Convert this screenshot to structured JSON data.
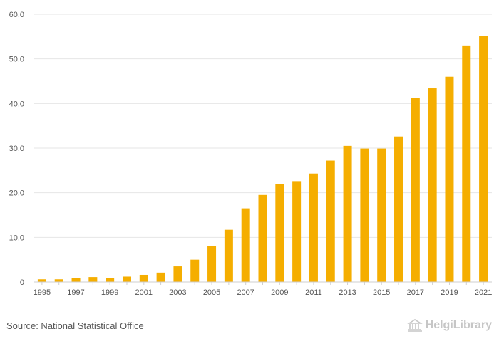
{
  "chart_data": {
    "type": "bar",
    "title": "",
    "xlabel": "",
    "ylabel": "",
    "ylim": [
      0,
      60
    ],
    "yticks": [
      "0",
      "10.0",
      "20.0",
      "30.0",
      "40.0",
      "50.0",
      "60.0"
    ],
    "ytick_values": [
      0,
      10,
      20,
      30,
      40,
      50,
      60
    ],
    "categories": [
      "1995",
      "1996",
      "1997",
      "1998",
      "1999",
      "2000",
      "2001",
      "2002",
      "2003",
      "2004",
      "2005",
      "2006",
      "2007",
      "2008",
      "2009",
      "2010",
      "2011",
      "2012",
      "2013",
      "2014",
      "2015",
      "2016",
      "2017",
      "2018",
      "2019",
      "2020",
      "2021"
    ],
    "xtick_labels": [
      "1995",
      "1997",
      "1999",
      "2001",
      "2003",
      "2005",
      "2007",
      "2009",
      "2011",
      "2013",
      "2015",
      "2017",
      "2019",
      "2021"
    ],
    "values": [
      0.6,
      0.6,
      0.8,
      1.1,
      0.8,
      1.2,
      1.6,
      2.1,
      3.5,
      5.0,
      8.0,
      11.7,
      16.5,
      19.5,
      21.9,
      22.6,
      24.3,
      27.2,
      30.5,
      29.9,
      29.9,
      32.6,
      41.3,
      43.4,
      46.0,
      53.0,
      55.2
    ],
    "grid": true,
    "bar_color": "#f5ae00"
  },
  "footer": {
    "source": "Source: National Statistical Office",
    "brand": "HelgiLibrary"
  }
}
